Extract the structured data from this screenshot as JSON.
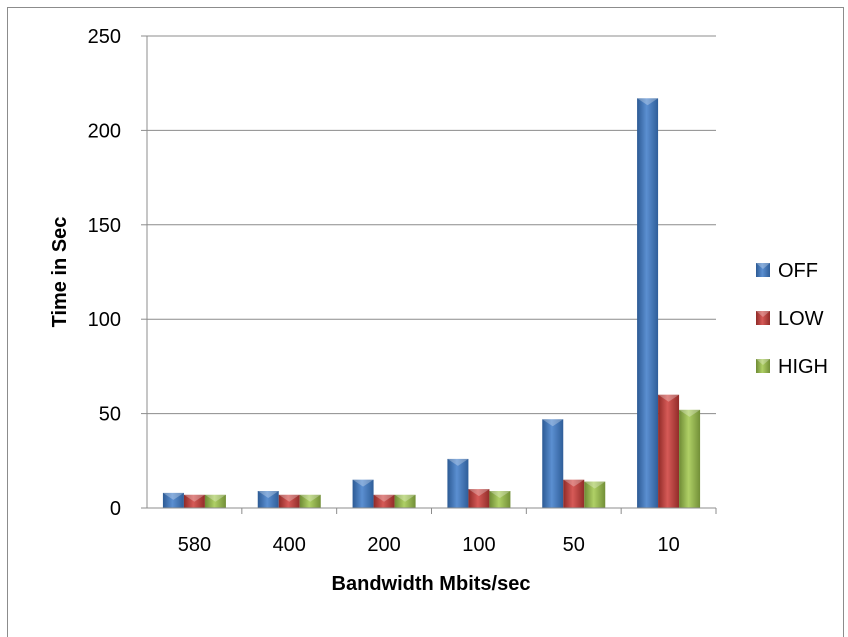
{
  "chart_data": {
    "type": "bar",
    "title": "",
    "xlabel": "Bandwidth Mbits/sec",
    "ylabel": "Time in Sec",
    "categories": [
      "580",
      "400",
      "200",
      "100",
      "50",
      "10"
    ],
    "series": [
      {
        "name": "OFF",
        "color": "#4a7ebb",
        "values": [
          8,
          9,
          15,
          26,
          47,
          217
        ]
      },
      {
        "name": "LOW",
        "color": "#be4b48",
        "values": [
          7,
          7,
          7,
          10,
          15,
          60
        ]
      },
      {
        "name": "HIGH",
        "color": "#98b954",
        "values": [
          7,
          7,
          7,
          9,
          14,
          52
        ]
      }
    ],
    "yticks": [
      "0",
      "50",
      "100",
      "150",
      "200",
      "250"
    ],
    "ylim": [
      0,
      250
    ],
    "grid": true,
    "legend_position": "right"
  }
}
